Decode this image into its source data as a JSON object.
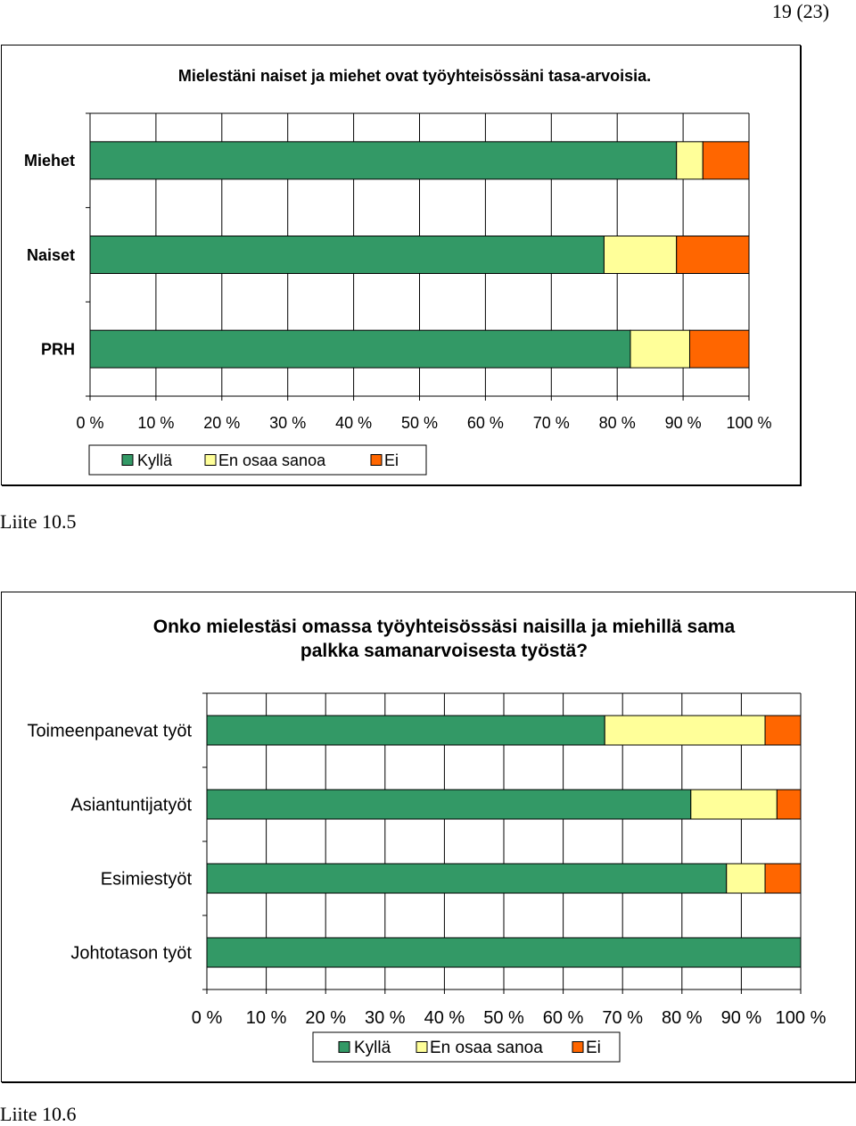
{
  "page_number": "19 (23)",
  "captions": [
    "Liite 10.5",
    "Liite 10.6"
  ],
  "colors": {
    "kylla": "#339966",
    "en_osaa_sanoa": "#FFFF99",
    "ei": "#FF6600"
  },
  "chart_data": [
    {
      "type": "bar",
      "orientation": "horizontal",
      "stacked": "percent",
      "title": "Mielestäni naiset ja miehet ovat työyhteisössäni tasa-arvoisia.",
      "categories": [
        "Miehet",
        "Naiset",
        "PRH"
      ],
      "series": [
        {
          "name": "Kyllä",
          "values": [
            89,
            78,
            82
          ]
        },
        {
          "name": "En osaa sanoa",
          "values": [
            4,
            11,
            9
          ]
        },
        {
          "name": "Ei",
          "values": [
            7,
            11,
            9
          ]
        }
      ],
      "xlim": [
        0,
        100
      ],
      "xticks": [
        "0 %",
        "10 %",
        "20 %",
        "30 %",
        "40 %",
        "50 %",
        "60 %",
        "70 %",
        "80 %",
        "90 %",
        "100 %"
      ],
      "grid": true,
      "legend": "bottom"
    },
    {
      "type": "bar",
      "orientation": "horizontal",
      "stacked": "percent",
      "title": "Onko mielestäsi omassa työyhteisössäsi naisilla ja miehillä sama palkka samanarvoisesta työstä?",
      "categories": [
        "Toimeenpanevat työt",
        "Asiantuntijatyöt",
        "Esimiestyöt",
        "Johtotason työt"
      ],
      "series": [
        {
          "name": "Kyllä",
          "values": [
            67,
            81.5,
            87.5,
            100
          ]
        },
        {
          "name": "En osaa sanoa",
          "values": [
            27,
            14.5,
            6.5,
            0
          ]
        },
        {
          "name": "Ei",
          "values": [
            6,
            4,
            6,
            0
          ]
        }
      ],
      "xlim": [
        0,
        100
      ],
      "xticks": [
        "0 %",
        "10 %",
        "20 %",
        "30 %",
        "40 %",
        "50 %",
        "60 %",
        "70 %",
        "80 %",
        "90 %",
        "100 %"
      ],
      "grid": true,
      "legend": "bottom"
    }
  ]
}
